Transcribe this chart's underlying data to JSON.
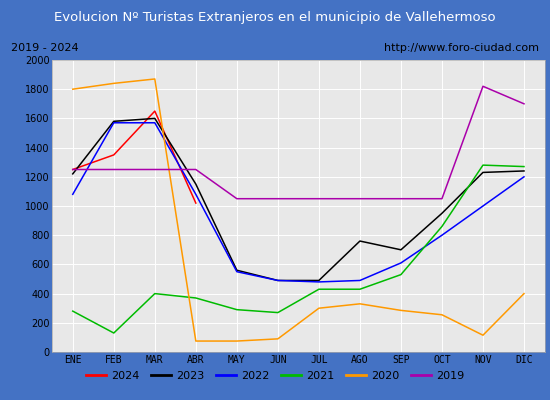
{
  "title": "Evolucion Nº Turistas Extranjeros en el municipio de Vallehermoso",
  "subtitle_left": "2019 - 2024",
  "subtitle_right": "http://www.foro-ciudad.com",
  "months": [
    "ENE",
    "FEB",
    "MAR",
    "ABR",
    "MAY",
    "JUN",
    "JUL",
    "AGO",
    "SEP",
    "OCT",
    "NOV",
    "DIC"
  ],
  "series": {
    "2024": [
      1250,
      1350,
      1650,
      1020,
      null,
      null,
      null,
      null,
      null,
      null,
      null,
      null
    ],
    "2023": [
      1220,
      1580,
      1600,
      1150,
      560,
      490,
      490,
      760,
      700,
      950,
      1230,
      1240
    ],
    "2022": [
      1080,
      1570,
      1570,
      1080,
      550,
      490,
      480,
      490,
      610,
      800,
      1000,
      1200
    ],
    "2021": [
      280,
      130,
      400,
      370,
      290,
      270,
      430,
      430,
      530,
      860,
      1280,
      1270
    ],
    "2020": [
      1800,
      1840,
      1870,
      75,
      75,
      90,
      300,
      330,
      285,
      255,
      115,
      400
    ],
    "2019": [
      1250,
      1250,
      1250,
      1250,
      1050,
      1050,
      1050,
      1050,
      1050,
      1050,
      1820,
      1700
    ]
  },
  "colors": {
    "2024": "#ff0000",
    "2023": "#000000",
    "2022": "#0000ff",
    "2021": "#00bb00",
    "2020": "#ff9900",
    "2019": "#aa00aa"
  },
  "ylim": [
    0,
    2000
  ],
  "yticks": [
    0,
    200,
    400,
    600,
    800,
    1000,
    1200,
    1400,
    1600,
    1800,
    2000
  ],
  "plot_bg_color": "#e8e8e8",
  "title_bg_color": "#4472c4",
  "title_font_color": "#ffffff",
  "outer_bg_color": "#4472c4",
  "inner_bg_color": "#ffffff"
}
